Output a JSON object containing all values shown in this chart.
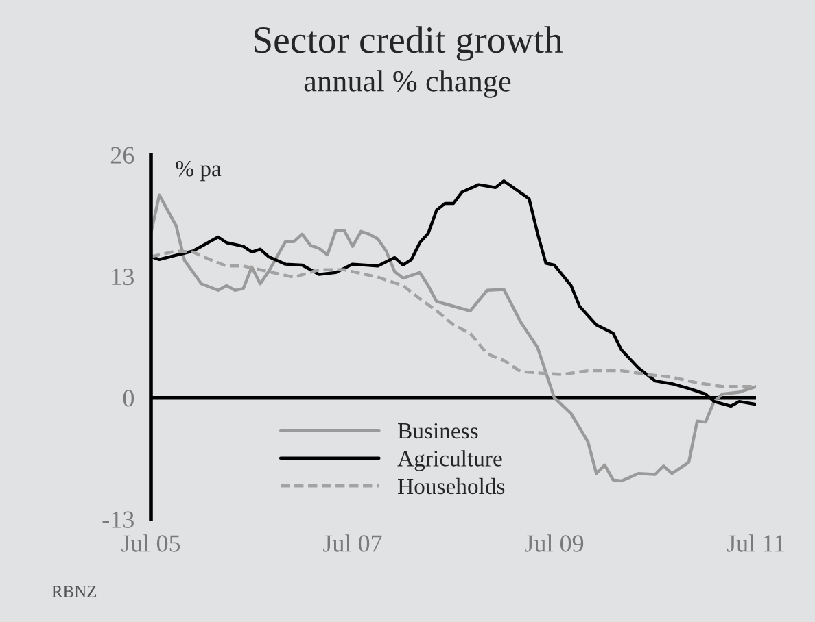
{
  "chart_data": {
    "type": "line",
    "title": "Sector credit growth",
    "subtitle": "annual % change",
    "ylabel": "% pa",
    "annotations": [
      "RBNZ"
    ],
    "xlim": [
      "2005-07",
      "2011-07"
    ],
    "xticks": [
      {
        "value": "2005-07",
        "label": "Jul 05"
      },
      {
        "value": "2007-07",
        "label": "Jul 07"
      },
      {
        "value": "2009-07",
        "label": "Jul 09"
      },
      {
        "value": "2011-07",
        "label": "Jul 11"
      }
    ],
    "ylim": [
      -13,
      26
    ],
    "yticks": [
      -13,
      0,
      13,
      26
    ],
    "ref_lines": [
      {
        "axis": "y",
        "value": 0,
        "color": "#000000",
        "line_style": "solid"
      }
    ],
    "legend": "bottom",
    "marker": "none",
    "series": [
      {
        "name": "Business",
        "color": "#9a9a9a",
        "line_style": "solid",
        "x": [
          "2005-07",
          "2005-08",
          "2005-10",
          "2005-11",
          "2006-01",
          "2006-03",
          "2006-04",
          "2006-05",
          "2006-06",
          "2006-07",
          "2006-08",
          "2006-09",
          "2006-11",
          "2006-12",
          "2007-01",
          "2007-02",
          "2007-03",
          "2007-04",
          "2007-05",
          "2007-06",
          "2007-07",
          "2007-08",
          "2007-09",
          "2007-10",
          "2007-11",
          "2007-12",
          "2008-01",
          "2008-03",
          "2008-04",
          "2008-05",
          "2008-07",
          "2008-09",
          "2008-11",
          "2009-01",
          "2009-03",
          "2009-05",
          "2009-07",
          "2009-09",
          "2009-11",
          "2009-12",
          "2010-01",
          "2010-02",
          "2010-03",
          "2010-05",
          "2010-07",
          "2010-08",
          "2010-09",
          "2010-11",
          "2010-12",
          "2011-01",
          "2011-02",
          "2011-03",
          "2011-05",
          "2011-07"
        ],
        "values": [
          17.6,
          21.7,
          18.4,
          14.7,
          12.2,
          11.5,
          12,
          11.5,
          11.7,
          14,
          12.2,
          13.5,
          16.7,
          16.7,
          17.5,
          16.3,
          16,
          15.3,
          17.9,
          17.9,
          16.2,
          17.8,
          17.5,
          17,
          15.7,
          13.5,
          12.8,
          13.4,
          12,
          10.3,
          9.8,
          9.3,
          11.5,
          11.6,
          8.1,
          5.4,
          0,
          -1.7,
          -4.7,
          -8.1,
          -7.2,
          -8.8,
          -8.9,
          -8.1,
          -8.2,
          -7.3,
          -8.1,
          -6.9,
          -2.5,
          -2.6,
          -0.4,
          0.4,
          0.6,
          1.2
        ]
      },
      {
        "name": "Agriculture",
        "color": "#000000",
        "line_style": "solid",
        "x": [
          "2005-07",
          "2005-08",
          "2005-12",
          "2006-03",
          "2006-04",
          "2006-06",
          "2006-07",
          "2006-08",
          "2006-09",
          "2006-11",
          "2007-01",
          "2007-03",
          "2007-05",
          "2007-07",
          "2007-10",
          "2007-12",
          "2008-01",
          "2008-02",
          "2008-03",
          "2008-04",
          "2008-05",
          "2008-06",
          "2008-07",
          "2008-08",
          "2008-10",
          "2008-12",
          "2009-01",
          "2009-04",
          "2009-05",
          "2009-06",
          "2009-07",
          "2009-09",
          "2009-10",
          "2009-12",
          "2010-02",
          "2010-03",
          "2010-05",
          "2010-07",
          "2010-09",
          "2010-11",
          "2011-01",
          "2011-02",
          "2011-04",
          "2011-05",
          "2011-07"
        ],
        "values": [
          15.1,
          14.8,
          15.7,
          17.2,
          16.6,
          16.2,
          15.6,
          15.9,
          15.1,
          14.3,
          14.2,
          13.2,
          13.4,
          14.3,
          14.1,
          15,
          14.2,
          14.8,
          16.6,
          17.6,
          20.1,
          20.8,
          20.8,
          22,
          22.8,
          22.5,
          23.2,
          21.3,
          17.6,
          14.4,
          14.2,
          12,
          9.8,
          7.8,
          6.9,
          5.1,
          3.2,
          1.8,
          1.5,
          1.0,
          0.4,
          -0.4,
          -0.9,
          -0.4,
          -0.7
        ]
      },
      {
        "name": "Households",
        "color": "#a3a3a3",
        "line_style": "dashed",
        "x": [
          "2005-07",
          "2005-10",
          "2005-12",
          "2006-02",
          "2006-04",
          "2006-06",
          "2006-09",
          "2006-12",
          "2007-03",
          "2007-06",
          "2007-10",
          "2008-01",
          "2008-03",
          "2008-05",
          "2008-07",
          "2008-09",
          "2008-11",
          "2009-01",
          "2009-03",
          "2009-06",
          "2009-08",
          "2009-11",
          "2010-03",
          "2010-06",
          "2010-09",
          "2010-12",
          "2011-03",
          "2011-07"
        ],
        "values": [
          15.1,
          15.7,
          15.6,
          14.8,
          14.1,
          14.1,
          13.5,
          12.9,
          13.7,
          13.7,
          12.9,
          12,
          10.6,
          9.3,
          7.8,
          6.9,
          4.7,
          4.0,
          2.8,
          2.6,
          2.5,
          2.9,
          2.9,
          2.5,
          2.2,
          1.6,
          1.2,
          1.2
        ]
      }
    ]
  }
}
